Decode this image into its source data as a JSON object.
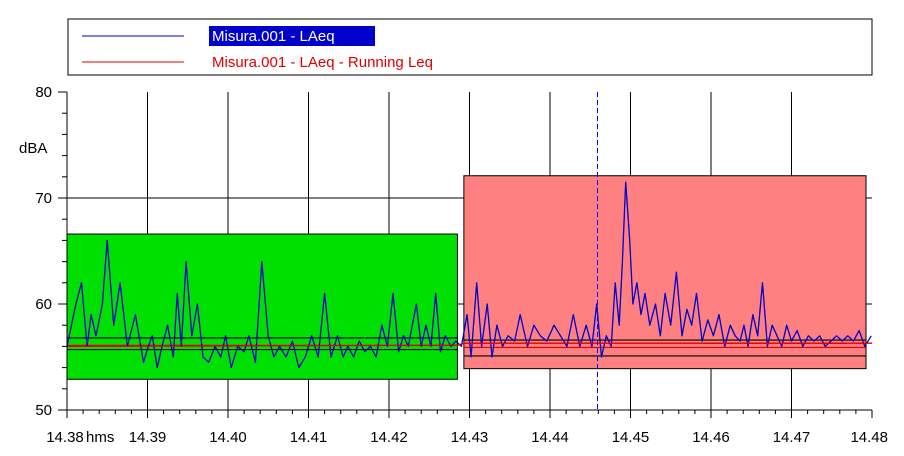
{
  "chart_data": {
    "type": "line",
    "legend": [
      {
        "label": "Misura.001 - LAeq",
        "color": "#0000cc",
        "selected": true
      },
      {
        "label": "Misura.001 - LAeq - Running Leq",
        "color": "#e00000",
        "selected": false
      }
    ],
    "ylabel": "dBA",
    "ylim": [
      50,
      80
    ],
    "y_ticks": [
      "50",
      "60",
      "70",
      "80"
    ],
    "xlim": [
      14.38,
      14.48
    ],
    "x_ticks": [
      "14.38",
      "14.39",
      "14.40",
      "14.41",
      "14.42",
      "14.43",
      "14.44",
      "14.45",
      "14.46",
      "14.47",
      "14.48"
    ],
    "x_unit": "hms",
    "cursor_x": 14.4459,
    "grid": true,
    "regions": [
      {
        "x0": 14.38,
        "x1": 14.4285,
        "y0": 52.9,
        "y1": 66.6,
        "color": "#00e000",
        "lines": [
          {
            "y": 56.8,
            "color": "#000000"
          },
          {
            "y": 56.1,
            "color": "#e00000"
          },
          {
            "y": 55.7,
            "color": "#000000"
          }
        ]
      },
      {
        "x0": 14.4293,
        "x1": 14.48,
        "y0": 53.9,
        "y1": 72.1,
        "color": "#ff8080",
        "lines": [
          {
            "y": 56.6,
            "color": "#000000"
          },
          {
            "y": 55.9,
            "color": "#e00000"
          },
          {
            "y": 55.1,
            "color": "#000000"
          }
        ]
      }
    ],
    "series": [
      {
        "name": "Misura.001 - LAeq",
        "color": "#0000cc",
        "x": [
          14.38,
          14.3811,
          14.3818,
          14.3825,
          14.383,
          14.3836,
          14.3844,
          14.385,
          14.3858,
          14.3866,
          14.3875,
          14.3885,
          14.3895,
          14.3901,
          14.3906,
          14.3912,
          14.3918,
          14.3925,
          14.3932,
          14.3937,
          14.3942,
          14.3948,
          14.3955,
          14.3962,
          14.3969,
          14.3976,
          14.3984,
          14.3991,
          14.3997,
          14.4004,
          14.4012,
          14.402,
          14.4026,
          14.4034,
          14.4042,
          14.405,
          14.4057,
          14.4064,
          14.4072,
          14.408,
          14.4088,
          14.4096,
          14.4104,
          14.4112,
          14.412,
          14.4128,
          14.4136,
          14.4143,
          14.4149,
          14.4156,
          14.4163,
          14.417,
          14.4177,
          14.4184,
          14.4191,
          14.4198,
          14.4205,
          14.4212,
          14.4218,
          14.4224,
          14.4229,
          14.4234,
          14.424,
          14.4246,
          14.4252,
          14.4258,
          14.4264,
          14.427,
          14.4277,
          14.4283,
          14.429,
          14.4297,
          14.4302,
          14.4309,
          14.4315,
          14.4322,
          14.4328,
          14.4334,
          14.4341,
          14.4348,
          14.4356,
          14.4363,
          14.4372,
          14.438,
          14.4388,
          14.4396,
          14.4405,
          14.4413,
          14.4421,
          14.4429,
          14.4437,
          14.4445,
          14.4452,
          14.4458,
          14.4464,
          14.447,
          14.4476,
          14.4481,
          14.4486,
          14.449,
          14.4494,
          14.4499,
          14.4503,
          14.4508,
          14.4513,
          14.4518,
          14.4524,
          14.4531,
          14.4537,
          14.4543,
          14.455,
          14.4557,
          14.4564,
          14.457,
          14.4576,
          14.4582,
          14.4589,
          14.4596,
          14.4603,
          14.461,
          14.4617,
          14.4624,
          14.463,
          14.4636,
          14.4641,
          14.4646,
          14.4652,
          14.4658,
          14.4664,
          14.467,
          14.4676,
          14.4682,
          14.4688,
          14.4694,
          14.47,
          14.4707,
          14.4714,
          14.4721,
          14.4728,
          14.4735,
          14.4742,
          14.4749,
          14.4756,
          14.4763,
          14.477,
          14.4777,
          14.4784,
          14.4791,
          14.4799
        ],
        "y": [
          56.0,
          60.0,
          62.0,
          56.0,
          59.0,
          57.0,
          60.0,
          66.0,
          58.0,
          62.0,
          56.0,
          59.0,
          54.5,
          56.0,
          57.0,
          54.0,
          56.0,
          58.0,
          55.0,
          61.0,
          56.0,
          64.0,
          57.0,
          60.0,
          55.0,
          54.5,
          56.0,
          55.0,
          57.0,
          54.0,
          56.0,
          55.5,
          57.0,
          54.5,
          64.0,
          57.0,
          55.0,
          56.0,
          55.0,
          56.5,
          54.0,
          55.0,
          57.0,
          55.0,
          61.0,
          55.0,
          57.0,
          55.0,
          56.0,
          55.0,
          56.5,
          55.5,
          56.0,
          55.0,
          58.0,
          56.0,
          61.0,
          55.5,
          57.0,
          56.0,
          58.0,
          60.0,
          56.0,
          58.0,
          56.0,
          61.0,
          55.5,
          57.0,
          56.0,
          56.5,
          56.0,
          59.0,
          55.0,
          62.0,
          56.0,
          60.0,
          55.0,
          58.0,
          56.0,
          57.0,
          56.5,
          59.0,
          56.0,
          58.0,
          57.0,
          56.5,
          58.0,
          57.0,
          56.0,
          59.0,
          56.0,
          58.0,
          56.0,
          60.0,
          55.0,
          57.0,
          56.0,
          62.0,
          58.0,
          64.0,
          71.5,
          66.0,
          60.0,
          62.0,
          59.0,
          61.0,
          58.0,
          60.0,
          57.0,
          61.0,
          58.0,
          63.0,
          57.0,
          59.5,
          58.0,
          61.0,
          56.5,
          58.5,
          57.0,
          59.0,
          56.0,
          58.0,
          57.0,
          56.5,
          58.0,
          56.0,
          59.0,
          57.0,
          62.0,
          56.0,
          58.0,
          57.0,
          56.0,
          58.0,
          56.5,
          57.5,
          56.0,
          57.0,
          56.5,
          57.0,
          56.0,
          56.5,
          57.0,
          56.5,
          57.0,
          56.5,
          57.5,
          56.0,
          57.0
        ]
      },
      {
        "name": "Misura.001 - LAeq - Running Leq",
        "color": "#e00000",
        "x": [
          14.38,
          14.4285,
          14.4293,
          14.48
        ],
        "y": [
          56.0,
          56.1,
          56.3,
          56.3
        ]
      }
    ]
  }
}
